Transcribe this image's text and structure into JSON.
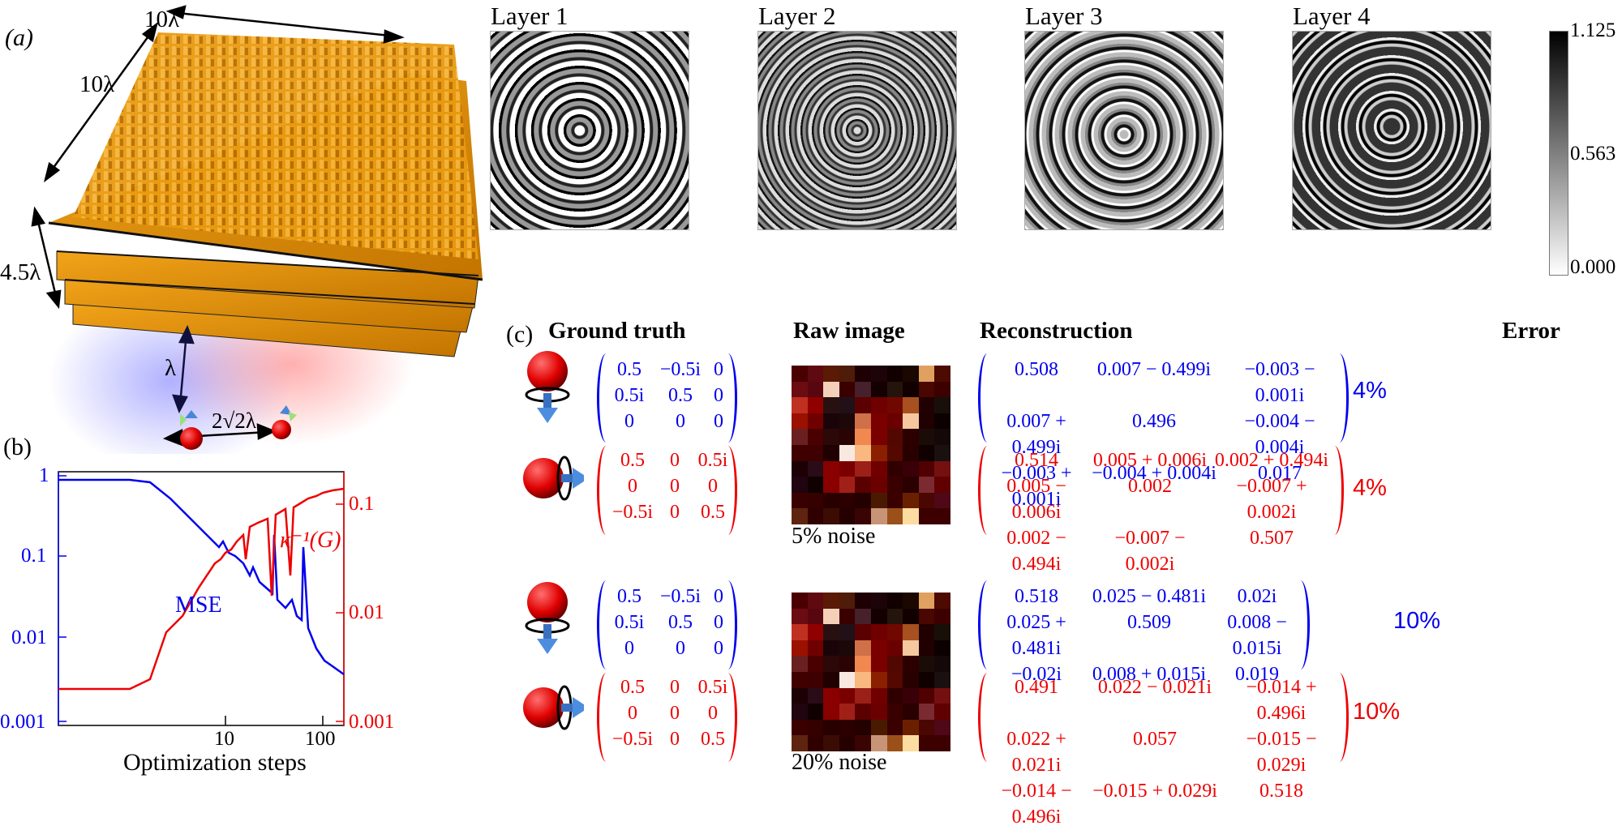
{
  "panel_a": {
    "label": "(a)",
    "dimensions": {
      "width": "10λ",
      "depth": "10λ",
      "height": "4.5λ",
      "distance_to_emitter": "λ",
      "emitter_spacing": "2√2λ"
    },
    "layers": [
      {
        "title": "Layer 1"
      },
      {
        "title": "Layer 2"
      },
      {
        "title": "Layer 3"
      },
      {
        "title": "Layer 4"
      }
    ],
    "colorbar": {
      "max": "1.125",
      "mid": "0.563",
      "min": "0.000"
    }
  },
  "panel_b": {
    "label": "(b)"
  },
  "panel_c": {
    "label": "(c)",
    "headings": {
      "ground_truth": "Ground truth",
      "raw_image": "Raw image",
      "reconstruction": "Reconstruction",
      "error": "Error"
    },
    "ground_truth": {
      "blue": [
        [
          "0.5",
          "−0.5i",
          "0"
        ],
        [
          "0.5i",
          "0.5",
          "0"
        ],
        [
          "0",
          "0",
          "0"
        ]
      ],
      "red": [
        [
          "0.5",
          "0",
          "0.5i"
        ],
        [
          "0",
          "0",
          "0"
        ],
        [
          "−0.5i",
          "0",
          "0.5"
        ]
      ]
    },
    "rows": [
      {
        "noise_label": "5% noise",
        "blue": [
          [
            "0.508",
            "0.007 − 0.499i",
            "−0.003 − 0.001i"
          ],
          [
            "0.007 + 0.499i",
            "0.496",
            "−0.004 − 0.004i"
          ],
          [
            "−0.003 + 0.001i",
            "−0.004 + 0.004i",
            "0.017"
          ]
        ],
        "red": [
          [
            "0.514",
            "0.005 + 0.006i",
            "0.002 + 0.494i"
          ],
          [
            "0.005 − 0.006i",
            "0.002",
            "−0.007 + 0.002i"
          ],
          [
            "0.002 − 0.494i",
            "−0.007 − 0.002i",
            "0.507"
          ]
        ],
        "error_blue": "4%",
        "error_red": "4%"
      },
      {
        "noise_label": "20% noise",
        "blue": [
          [
            "0.518",
            "0.025 − 0.481i",
            "0.02i"
          ],
          [
            "0.025 + 0.481i",
            "0.509",
            "0.008 − 0.015i"
          ],
          [
            "−0.02i",
            "0.008 + 0.015i",
            "0.019"
          ]
        ],
        "red": [
          [
            "0.491",
            "0.022 − 0.021i",
            "−0.014 + 0.496i"
          ],
          [
            "0.022 + 0.021i",
            "0.057",
            "−0.015 − 0.029i"
          ],
          [
            "−0.014 − 0.496i",
            "−0.015 + 0.029i",
            "0.518"
          ]
        ],
        "error_blue": "10%",
        "error_red": "10%"
      }
    ]
  },
  "colors": {
    "blue": "#0000ee",
    "red": "#ee0000",
    "gold": "#d98c00"
  },
  "chart_data": {
    "type": "line",
    "title": "",
    "xlabel": "Optimization steps",
    "ylabel_left": "MSE",
    "ylabel_right": "κ⁻¹(G)",
    "x_scale": "log",
    "y_scale": "log",
    "xlim": [
      1,
      150
    ],
    "ylim_left": [
      0.001,
      1
    ],
    "ylim_right": [
      0.001,
      0.2
    ],
    "x_ticks": [
      "10",
      "100"
    ],
    "y_ticks_left": [
      "0.001",
      "0.01",
      "0.1",
      "1"
    ],
    "y_ticks_right": [
      "0.001",
      "0.01",
      "0.1"
    ],
    "series": [
      {
        "name": "MSE",
        "color": "#0000ee",
        "axis": "left",
        "x": [
          1,
          3,
          4,
          5,
          6,
          8,
          11,
          12,
          13,
          15,
          17,
          18,
          20,
          22,
          23,
          25,
          30,
          33,
          35,
          40,
          45,
          50,
          60,
          70,
          80,
          100,
          130,
          150
        ],
        "y": [
          0.85,
          0.85,
          0.8,
          0.6,
          0.45,
          0.25,
          0.16,
          0.22,
          0.12,
          0.1,
          0.07,
          0.1,
          0.06,
          0.04,
          0.3,
          0.035,
          0.02,
          0.015,
          0.4,
          0.008,
          0.006,
          0.005,
          0.004,
          0.0035,
          0.003,
          0.0025,
          0.0018,
          0.0017
        ]
      },
      {
        "name": "κ⁻¹(G)",
        "color": "#ee0000",
        "axis": "right",
        "x": [
          1,
          3,
          4,
          5,
          6,
          8,
          10,
          11,
          12,
          13,
          14,
          16,
          17,
          18,
          20,
          22,
          23,
          25,
          30,
          33,
          35,
          40,
          50,
          60,
          70,
          80,
          100,
          150
        ],
        "y": [
          0.0015,
          0.0015,
          0.002,
          0.007,
          0.008,
          0.02,
          0.035,
          0.03,
          0.045,
          0.04,
          0.05,
          0.06,
          0.03,
          0.07,
          0.075,
          0.075,
          0.015,
          0.085,
          0.09,
          0.015,
          0.1,
          0.11,
          0.12,
          0.13,
          0.14,
          0.14,
          0.15,
          0.15
        ]
      }
    ],
    "annotations": [
      "MSE",
      "κ⁻¹(G)"
    ]
  }
}
